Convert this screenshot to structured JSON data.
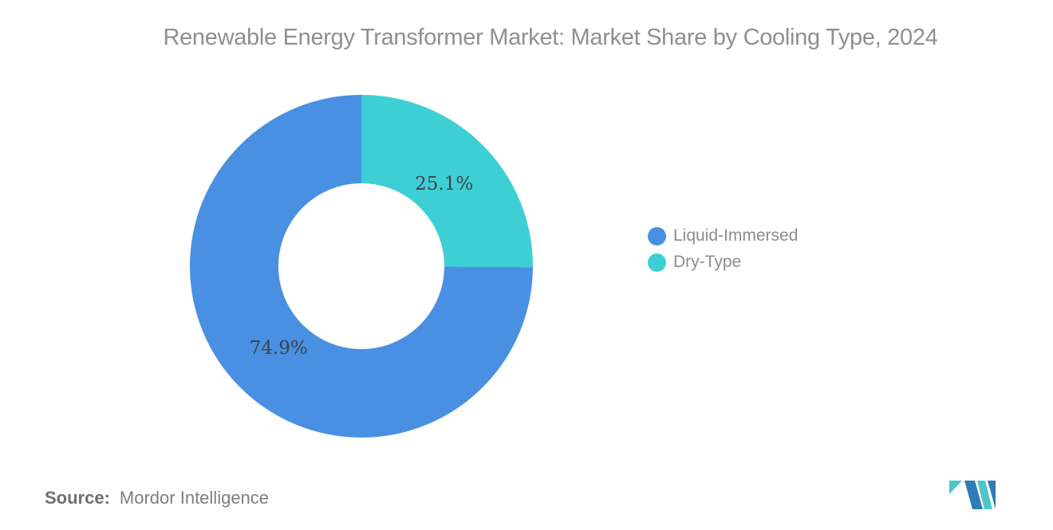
{
  "page": {
    "title": "Renewable Energy Transformer Market: Market Share by Cooling Type, 2024"
  },
  "chart_data": {
    "type": "pie",
    "donut": true,
    "hole_ratio": 0.484,
    "start_angle_deg": 0,
    "direction": "clockwise",
    "title": "Renewable Energy Transformer Market: Market Share by Cooling Type, 2024",
    "unit": "%",
    "legend_position": "right",
    "grid": false,
    "label_color": "#3a414b",
    "legend_text_color": "#8c8c8c",
    "label_radius_ratio": 0.68,
    "series": [
      {
        "name": "Liquid-Immersed",
        "value": 74.9,
        "label": "74.9%",
        "color": "#4a90e2"
      },
      {
        "name": "Dry-Type",
        "value": 25.1,
        "label": "25.1%",
        "color": "#3ecfd4"
      }
    ],
    "draw_order": [
      "Dry-Type",
      "Liquid-Immersed"
    ]
  },
  "source": {
    "label": "Source:",
    "value": "Mordor Intelligence"
  },
  "logo": {
    "name": "mordor-intelligence-logo",
    "teal": "#4ec5c8",
    "blue": "#2e7cb8"
  }
}
